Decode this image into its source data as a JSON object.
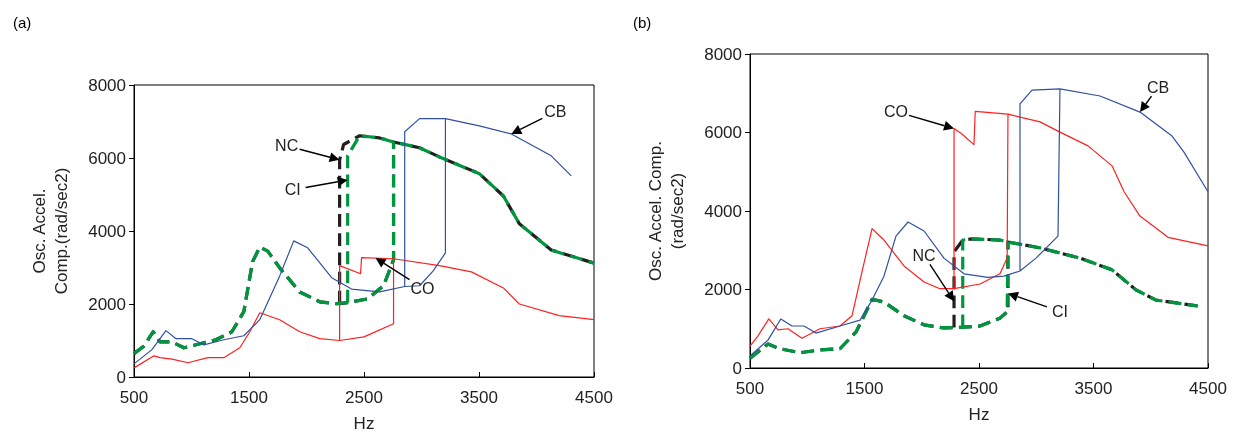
{
  "chart_data": [
    {
      "type": "line",
      "title": "(a)",
      "xlabel": "Hz",
      "ylabel": "Osc. Accel.\nComp.(rad/sec2)",
      "xlim": [
        500,
        4500
      ],
      "ylim": [
        0,
        8000
      ],
      "xticks": [
        500,
        1500,
        2500,
        3500,
        4500
      ],
      "yticks": [
        0,
        2000,
        4000,
        6000,
        8000
      ],
      "annotations": [
        {
          "text": "NC",
          "x": 2288,
          "y": 5950
        },
        {
          "text": "CI",
          "x": 2358,
          "y": 5400
        },
        {
          "text": "CO",
          "x": 2600,
          "y": 3260
        },
        {
          "text": "CB",
          "x": 3781,
          "y": 6660
        }
      ],
      "series": [
        {
          "color": "#231f20",
          "line_style": "dashed",
          "x": [
            500,
            587,
            667,
            726,
            830,
            934,
            1073,
            1212,
            1351,
            1455,
            1531,
            1594,
            1663,
            1767,
            1941,
            2115,
            2253,
            2288,
            2358,
            2531,
            2670,
            2757,
            2757,
            null,
            2288,
            2288,
            2323,
            2462,
            2635,
            2757,
            2983,
            3156,
            3503,
            3712,
            3851,
            4128,
            4500
          ],
          "values": [
            640,
            850,
            1240,
            960,
            960,
            800,
            910,
            1020,
            1240,
            1790,
            3160,
            3560,
            3450,
            2990,
            2330,
            2060,
            2010,
            2010,
            2040,
            2140,
            2500,
            3210,
            6440,
            null,
            2010,
            5950,
            6370,
            6610,
            6550,
            6440,
            6280,
            6030,
            5570,
            4960,
            4200,
            3480,
            3120
          ]
        },
        {
          "color": "#00963f",
          "line_style": "dashed",
          "x": [
            500,
            587,
            667,
            726,
            830,
            934,
            1073,
            1212,
            1351,
            1455,
            1531,
            1594,
            1663,
            1767,
            1941,
            2115,
            2253,
            2358,
            2531,
            2670,
            2757,
            2757,
            null,
            2358,
            2358,
            2462,
            2635,
            2757,
            2983,
            3156,
            3503,
            3712,
            3851,
            4128,
            4500
          ],
          "values": [
            640,
            850,
            1240,
            960,
            960,
            800,
            910,
            1020,
            1240,
            1790,
            3160,
            3560,
            3450,
            2990,
            2330,
            2060,
            2010,
            2040,
            2140,
            2500,
            3210,
            6440,
            null,
            2040,
            6060,
            6610,
            6550,
            6440,
            6280,
            6030,
            5570,
            4960,
            4200,
            3480,
            3120
          ]
        },
        {
          "color": "#ff2020",
          "line_style": "solid",
          "x": [
            500,
            674,
            726,
            830,
            969,
            1142,
            1281,
            1420,
            1507,
            1594,
            1767,
            1941,
            2115,
            2288,
            2500,
            2757,
            2757,
            null,
            2288,
            2288,
            2470,
            2479,
            2757,
            3156,
            3434,
            3712,
            3851,
            4198,
            4500
          ],
          "values": [
            250,
            580,
            530,
            490,
            390,
            530,
            530,
            800,
            1240,
            1760,
            1570,
            1240,
            1050,
            1000,
            1100,
            1460,
            3240,
            null,
            1000,
            3050,
            2830,
            3270,
            3240,
            3050,
            2880,
            2440,
            2000,
            1680,
            1570
          ]
        },
        {
          "color": "#3050a0",
          "line_style": "solid",
          "x": [
            500,
            656,
            778,
            865,
            1003,
            1108,
            1281,
            1455,
            1594,
            1767,
            1889,
            2010,
            2219,
            2392,
            2635,
            2854,
            2983,
            3100,
            3208,
            3208,
            null,
            2854,
            2854,
            2983,
            3208,
            3503,
            3781,
            4128,
            4302
          ],
          "values": [
            360,
            750,
            1270,
            1050,
            1050,
            880,
            1020,
            1130,
            1570,
            2770,
            3730,
            3540,
            2720,
            2410,
            2330,
            2480,
            2500,
            2900,
            3400,
            7080,
            null,
            2480,
            6720,
            7080,
            7080,
            6880,
            6660,
            6060,
            5510
          ]
        }
      ]
    },
    {
      "type": "line",
      "title": "(b)",
      "xlabel": "Hz",
      "ylabel": "Osc. Accel. Comp.\n(rad/sec2)",
      "xlim": [
        500,
        4500
      ],
      "ylim": [
        0,
        8000
      ],
      "xticks": [
        500,
        1500,
        2500,
        3500,
        4500
      ],
      "yticks": [
        0,
        2000,
        4000,
        6000,
        8000
      ],
      "annotations": [
        {
          "text": "CO",
          "x": 2282,
          "y": 6100
        },
        {
          "text": "CB",
          "x": 3906,
          "y": 6520
        },
        {
          "text": "NC",
          "x": 2282,
          "y": 1700
        },
        {
          "text": "CI",
          "x": 2753,
          "y": 1900
        }
      ],
      "series": [
        {
          "color": "#231f20",
          "line_style": "dashed",
          "x": [
            500,
            657,
            762,
            937,
            1111,
            1286,
            1426,
            1496,
            1566,
            1670,
            1845,
            2020,
            2194,
            2282,
            2358,
            2509,
            2683,
            2746,
            2753,
            2753,
            null,
            2282,
            2282,
            2358,
            2439,
            2683,
            2753,
            3033,
            3382,
            3662,
            3871,
            4046,
            4413
          ],
          "values": [
            250,
            610,
            490,
            390,
            460,
            490,
            920,
            1330,
            1750,
            1680,
            1330,
            1100,
            1020,
            1030,
            1040,
            1070,
            1270,
            1430,
            1430,
            3210,
            null,
            1030,
            2960,
            3260,
            3290,
            3260,
            3210,
            3060,
            2800,
            2500,
            1990,
            1730,
            1580
          ]
        },
        {
          "color": "#00963f",
          "line_style": "dashed",
          "x": [
            500,
            657,
            762,
            937,
            1111,
            1286,
            1426,
            1496,
            1566,
            1670,
            1845,
            2020,
            2194,
            2358,
            2509,
            2683,
            2746,
            2753,
            null,
            2358,
            2358,
            2439,
            2683,
            2753,
            3033,
            3382,
            3662,
            3871,
            4046,
            4413
          ],
          "values": [
            250,
            610,
            490,
            390,
            460,
            490,
            920,
            1330,
            1750,
            1680,
            1330,
            1100,
            1020,
            1040,
            1070,
            1270,
            1430,
            3210,
            null,
            1040,
            3260,
            3290,
            3260,
            3210,
            3060,
            2800,
            2500,
            1990,
            1730,
            1580
          ]
        },
        {
          "color": "#ff2020",
          "line_style": "solid",
          "x": [
            500,
            570,
            664,
            745,
            832,
            954,
            1111,
            1286,
            1391,
            1478,
            1566,
            1670,
            1845,
            2020,
            2159,
            2282,
            2509,
            2683,
            2746,
            2753,
            null,
            2282,
            2282,
            2351,
            2456,
            2467,
            2753,
            3033,
            3207,
            3452,
            3662,
            3767,
            3906,
            4151,
            4500
          ],
          "values": [
            560,
            820,
            1250,
            970,
            1000,
            760,
            1000,
            1070,
            1330,
            2450,
            3550,
            3260,
            2600,
            2190,
            2020,
            2020,
            2140,
            2400,
            2800,
            6470,
            null,
            2020,
            6100,
            5960,
            5690,
            6540,
            6470,
            6270,
            6010,
            5660,
            5150,
            4490,
            3870,
            3330,
            3110
          ]
        },
        {
          "color": "#3050a0",
          "line_style": "solid",
          "x": [
            500,
            657,
            769,
            867,
            972,
            1076,
            1286,
            1461,
            1566,
            1670,
            1775,
            1880,
            2020,
            2194,
            2369,
            2578,
            2718,
            2858,
            2998,
            3190,
            3207,
            null,
            2858,
            2858,
            2963,
            3207,
            3557,
            3906,
            4186,
            4290,
            4500
          ],
          "values": [
            310,
            710,
            1250,
            1070,
            1070,
            890,
            1070,
            1220,
            1730,
            2340,
            3360,
            3720,
            3490,
            2800,
            2400,
            2310,
            2340,
            2470,
            2800,
            3360,
            7110,
            null,
            2470,
            6730,
            7080,
            7110,
            6930,
            6520,
            5910,
            5500,
            4490
          ]
        }
      ]
    }
  ]
}
